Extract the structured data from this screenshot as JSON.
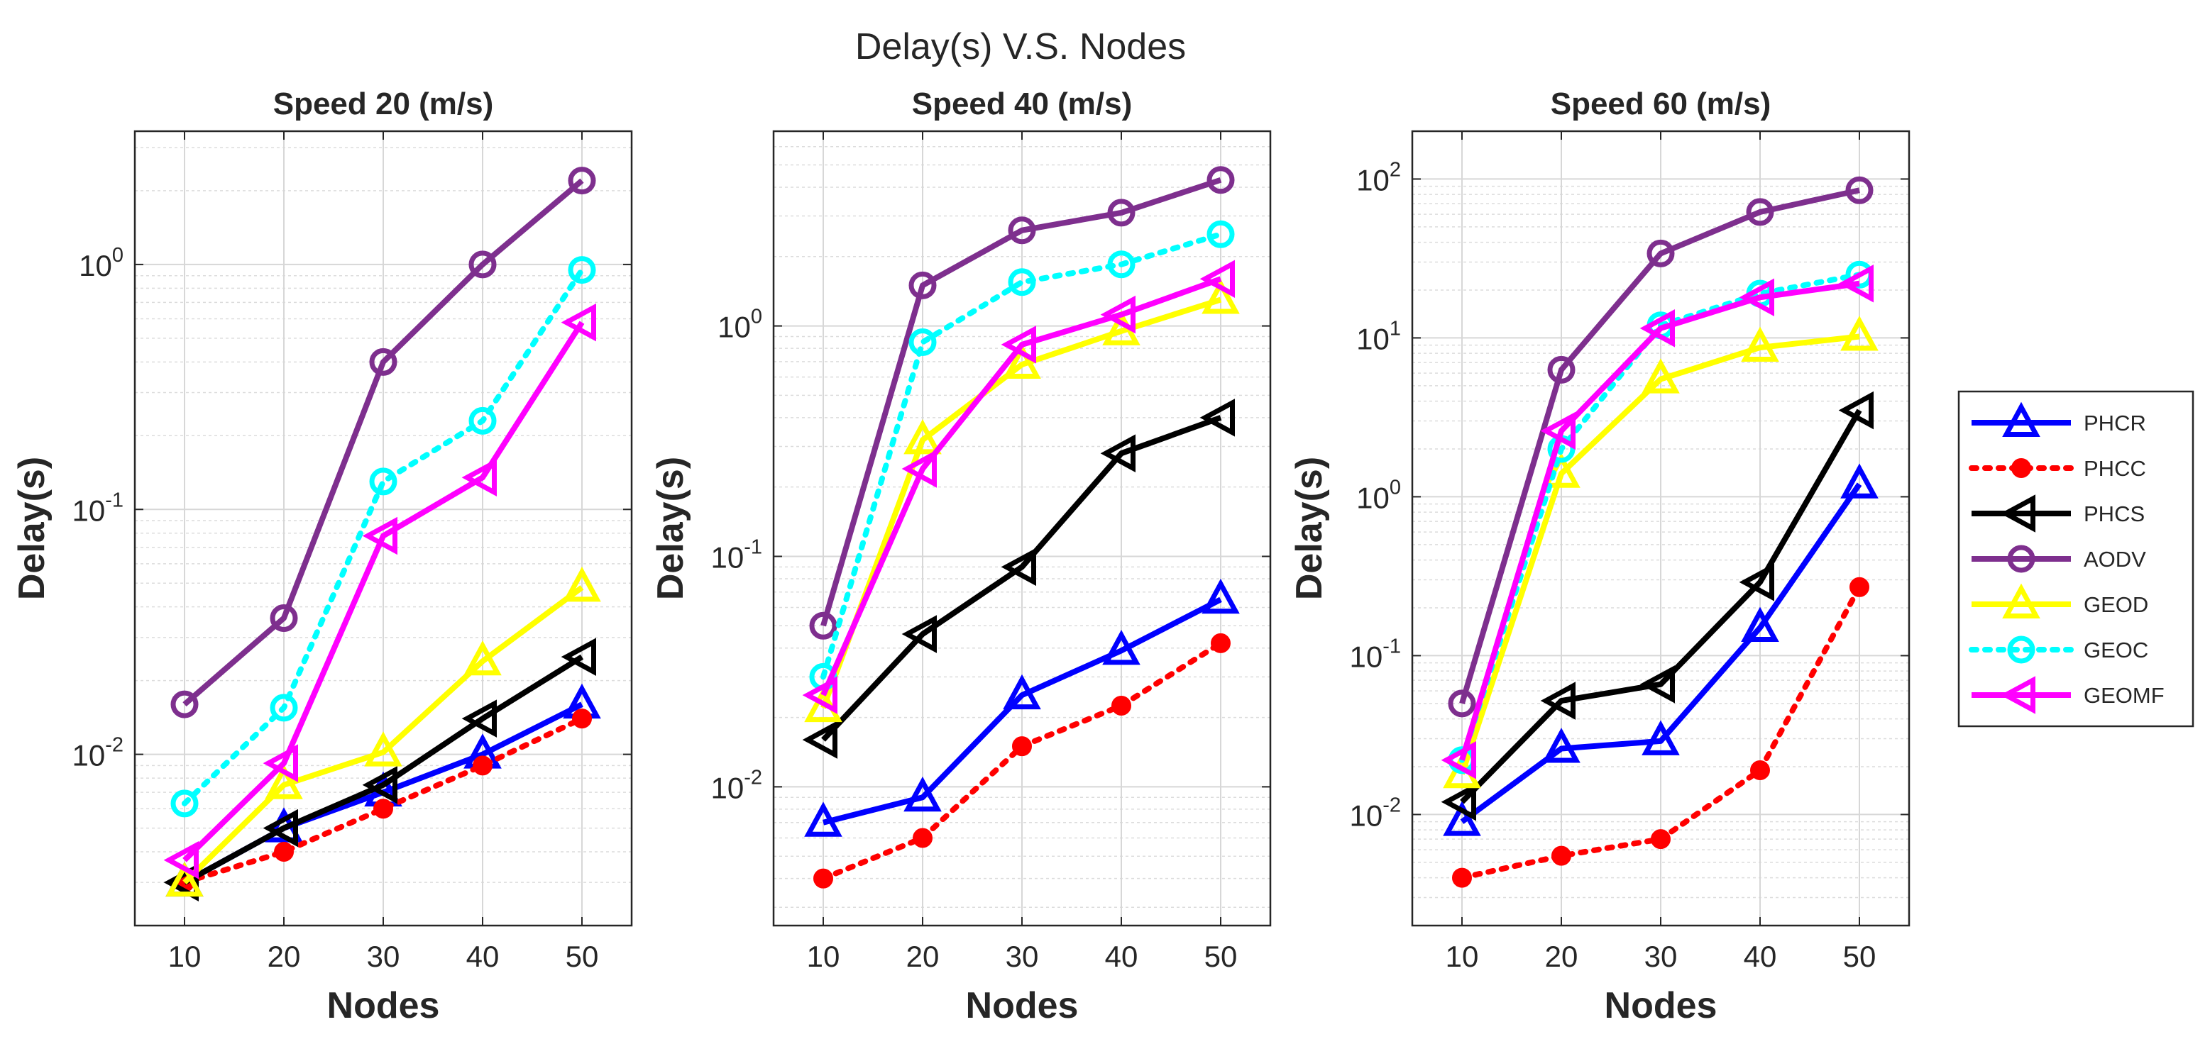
{
  "figure": {
    "title": "Delay(s) V.S. Nodes"
  },
  "legend": {
    "placement": "right",
    "entries": [
      "PHCR",
      "PHCC",
      "PHCS",
      "AODV",
      "GEOD",
      "GEOC",
      "GEOMF"
    ]
  },
  "styles": {
    "PHCR": {
      "color": "#0000ff",
      "marker": "triangle-up",
      "dashed": false
    },
    "PHCC": {
      "color": "#ff0000",
      "marker": "dot",
      "dashed": true
    },
    "PHCS": {
      "color": "#000000",
      "marker": "triangle-left",
      "dashed": false
    },
    "AODV": {
      "color": "#7e2f8e",
      "marker": "circle",
      "dashed": false
    },
    "GEOD": {
      "color": "#ffff00",
      "marker": "triangle-up",
      "dashed": false
    },
    "GEOC": {
      "color": "#00ffff",
      "marker": "circle",
      "dashed": true
    },
    "GEOMF": {
      "color": "#ff00ff",
      "marker": "triangle-left",
      "dashed": false
    }
  },
  "chart_data": [
    {
      "type": "line",
      "title": "Speed 20 (m/s)",
      "xlabel": "Nodes",
      "ylabel": "Delay(s)",
      "yscale": "log",
      "xlim": [
        5,
        55
      ],
      "ylim": [
        0.002,
        3.5
      ],
      "x": [
        10,
        20,
        30,
        40,
        50
      ],
      "xticks": [
        "10",
        "20",
        "30",
        "40",
        "50"
      ],
      "yticks": [
        {
          "base": "10",
          "exp": "-2"
        },
        {
          "base": "10",
          "exp": "-1"
        },
        {
          "base": "10",
          "exp": "0"
        }
      ],
      "grid": true,
      "series": [
        {
          "name": "PHCR",
          "values": [
            0.003,
            0.005,
            0.007,
            0.01,
            0.016
          ]
        },
        {
          "name": "PHCC",
          "values": [
            0.003,
            0.004,
            0.006,
            0.009,
            0.014
          ]
        },
        {
          "name": "PHCS",
          "values": [
            0.003,
            0.005,
            0.0075,
            0.014,
            0.025
          ]
        },
        {
          "name": "AODV",
          "values": [
            0.016,
            0.036,
            0.4,
            1.0,
            2.2
          ]
        },
        {
          "name": "GEOD",
          "values": [
            0.003,
            0.0075,
            0.0102,
            0.024,
            0.048
          ]
        },
        {
          "name": "GEOC",
          "values": [
            0.0063,
            0.0155,
            0.13,
            0.23,
            0.95
          ]
        },
        {
          "name": "GEOMF",
          "values": [
            0.0037,
            0.0092,
            0.078,
            0.135,
            0.58
          ]
        }
      ]
    },
    {
      "type": "line",
      "title": "Speed 40 (m/s)",
      "xlabel": "Nodes",
      "ylabel": "Delay(s)",
      "yscale": "log",
      "xlim": [
        5,
        55
      ],
      "ylim": [
        0.0025,
        7
      ],
      "x": [
        10,
        20,
        30,
        40,
        50
      ],
      "xticks": [
        "10",
        "20",
        "30",
        "40",
        "50"
      ],
      "yticks": [
        {
          "base": "10",
          "exp": "-2"
        },
        {
          "base": "10",
          "exp": "-1"
        },
        {
          "base": "10",
          "exp": "0"
        }
      ],
      "grid": true,
      "series": [
        {
          "name": "PHCR",
          "values": [
            0.007,
            0.009,
            0.025,
            0.039,
            0.065
          ]
        },
        {
          "name": "PHCC",
          "values": [
            0.004,
            0.006,
            0.015,
            0.0225,
            0.042
          ]
        },
        {
          "name": "PHCS",
          "values": [
            0.016,
            0.046,
            0.09,
            0.28,
            0.4
          ]
        },
        {
          "name": "AODV",
          "values": [
            0.05,
            1.5,
            2.6,
            3.1,
            4.3
          ]
        },
        {
          "name": "GEOD",
          "values": [
            0.022,
            0.32,
            0.68,
            0.95,
            1.3
          ]
        },
        {
          "name": "GEOC",
          "values": [
            0.03,
            0.85,
            1.55,
            1.85,
            2.5
          ]
        },
        {
          "name": "GEOMF",
          "values": [
            0.025,
            0.24,
            0.83,
            1.12,
            1.6
          ]
        }
      ]
    },
    {
      "type": "line",
      "title": "Speed 60 (m/s)",
      "xlabel": "Nodes",
      "ylabel": "Delay(s)",
      "yscale": "log",
      "xlim": [
        5,
        55
      ],
      "ylim": [
        0.002,
        200
      ],
      "x": [
        10,
        20,
        30,
        40,
        50
      ],
      "xticks": [
        "10",
        "20",
        "30",
        "40",
        "50"
      ],
      "yticks": [
        {
          "base": "10",
          "exp": "-2"
        },
        {
          "base": "10",
          "exp": "-1"
        },
        {
          "base": "10",
          "exp": "0"
        },
        {
          "base": "10",
          "exp": "1"
        },
        {
          "base": "10",
          "exp": "2"
        }
      ],
      "grid": true,
      "series": [
        {
          "name": "PHCR",
          "values": [
            0.009,
            0.026,
            0.029,
            0.15,
            1.2
          ]
        },
        {
          "name": "PHCC",
          "values": [
            0.004,
            0.0055,
            0.007,
            0.019,
            0.27
          ]
        },
        {
          "name": "PHCS",
          "values": [
            0.012,
            0.052,
            0.066,
            0.29,
            3.5
          ]
        },
        {
          "name": "AODV",
          "values": [
            0.05,
            6.3,
            34,
            62,
            85
          ]
        },
        {
          "name": "GEOD",
          "values": [
            0.018,
            1.4,
            5.5,
            8.7,
            10.2
          ]
        },
        {
          "name": "GEOC",
          "values": [
            0.022,
            2.0,
            12,
            19,
            25
          ]
        },
        {
          "name": "GEOMF",
          "values": [
            0.022,
            2.6,
            11.5,
            18,
            22
          ]
        }
      ]
    }
  ]
}
